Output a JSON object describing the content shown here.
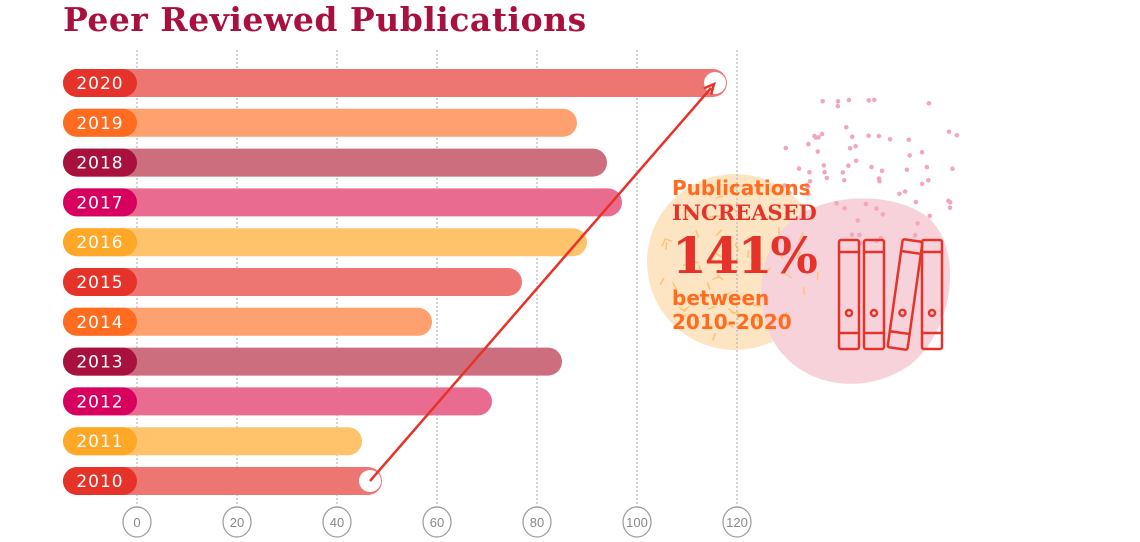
{
  "chart_data": {
    "type": "bar",
    "orientation": "horizontal",
    "title": "Peer Reviewed Publications",
    "categories": [
      "2020",
      "2019",
      "2018",
      "2017",
      "2016",
      "2015",
      "2014",
      "2013",
      "2012",
      "2011",
      "2010"
    ],
    "values": [
      118,
      88,
      94,
      97,
      90,
      77,
      59,
      85,
      71,
      45,
      49
    ],
    "xlim": [
      0,
      120
    ],
    "xticks": [
      "0",
      "20",
      "40",
      "60",
      "80",
      "100",
      "120"
    ],
    "grid": "vertical dashed",
    "trend_arrow": {
      "from": "2010",
      "to": "2020"
    },
    "label_colors": [
      "#e63329",
      "#ff6b1f",
      "#a8113d",
      "#d8005f",
      "#ffa726"
    ],
    "bar_colors": [
      "#ee7672",
      "#ffa06f",
      "#cc6e7e",
      "#e96b8f",
      "#ffc36b"
    ]
  },
  "callout": {
    "line1": "Publications",
    "line2": "INCREASED",
    "line3": "141%",
    "line4": "between",
    "line5": "2010-2020"
  },
  "icons": {
    "books": "books-icon"
  }
}
